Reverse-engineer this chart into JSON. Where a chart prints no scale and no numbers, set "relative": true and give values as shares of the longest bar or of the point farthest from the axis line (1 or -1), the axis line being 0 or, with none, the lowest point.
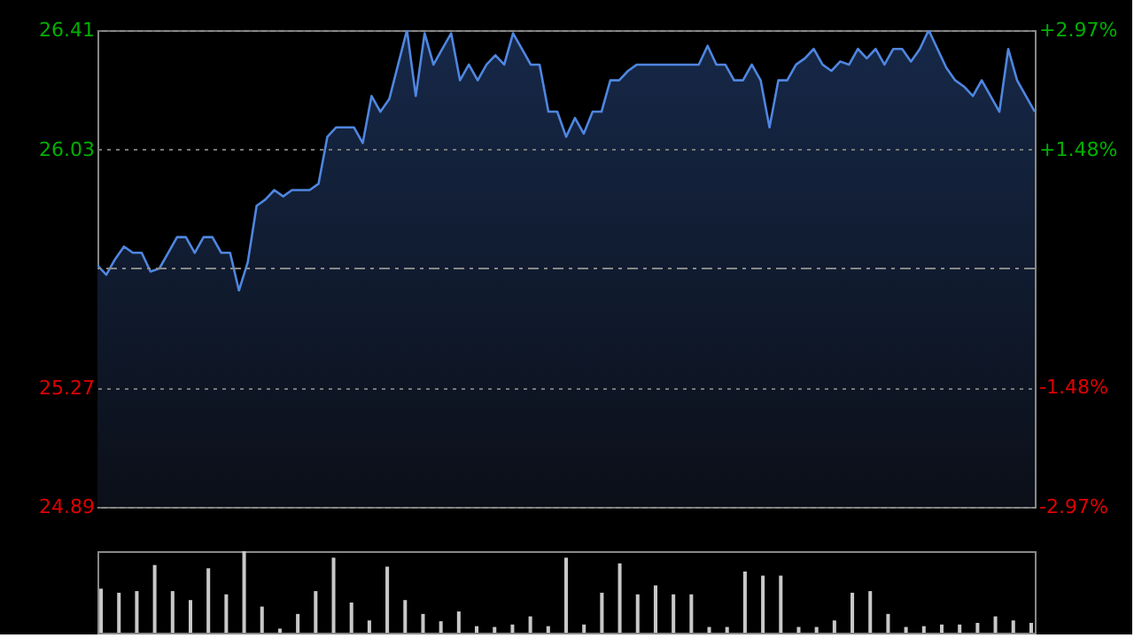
{
  "chart_data": [
    {
      "type": "area",
      "categories": [
        null,
        null,
        null,
        null,
        null,
        null,
        null,
        null,
        null,
        null,
        null,
        null,
        null,
        null,
        null,
        null,
        null,
        null,
        null,
        null,
        null,
        null,
        null,
        null,
        null,
        null,
        null,
        null,
        null,
        null,
        null,
        null,
        null,
        null,
        null,
        null,
        null,
        null,
        null,
        null,
        null,
        null,
        null,
        null,
        null,
        null,
        null,
        null,
        null,
        null,
        null,
        null,
        null,
        null,
        null,
        null,
        null,
        null,
        null,
        null,
        null,
        null,
        null,
        null,
        null,
        null,
        null,
        null,
        null,
        null,
        null,
        null,
        null,
        null,
        null,
        null,
        null,
        null,
        null,
        null,
        null,
        null,
        null,
        null,
        null,
        null,
        null,
        null,
        null,
        null,
        null,
        null,
        null,
        null,
        null,
        null,
        null,
        null,
        null,
        null,
        null,
        null,
        null,
        null,
        null,
        null,
        null
      ],
      "series": [
        {
          "color": "#4f86e0",
          "values": [
            25.66,
            25.63,
            25.68,
            25.72,
            25.7,
            25.7,
            25.64,
            25.65,
            25.7,
            25.75,
            25.75,
            25.7,
            25.75,
            25.75,
            25.7,
            25.7,
            25.58,
            25.67,
            25.85,
            25.87,
            25.9,
            25.88,
            25.9,
            25.9,
            25.9,
            25.92,
            26.07,
            26.1,
            26.1,
            26.1,
            26.05,
            26.2,
            26.15,
            26.19,
            26.3,
            26.41,
            26.2,
            26.4,
            26.3,
            26.35,
            26.4,
            26.25,
            26.3,
            26.25,
            26.3,
            26.33,
            26.3,
            26.4,
            26.35,
            26.3,
            26.3,
            26.15,
            26.15,
            26.07,
            26.13,
            26.08,
            26.15,
            26.15,
            26.25,
            26.25,
            26.28,
            26.3,
            26.3,
            26.3,
            26.3,
            26.3,
            26.3,
            26.3,
            26.3,
            26.36,
            26.3,
            26.3,
            26.25,
            26.25,
            26.3,
            26.25,
            26.1,
            26.25,
            26.25,
            26.3,
            26.32,
            26.35,
            26.3,
            26.28,
            26.31,
            26.3,
            26.35,
            26.32,
            26.35,
            26.3,
            26.35,
            26.35,
            26.31,
            26.35,
            26.41,
            26.35,
            26.29,
            26.25,
            26.23,
            26.2,
            26.25,
            26.2,
            26.15,
            26.35,
            26.25,
            26.2,
            26.15
          ]
        }
      ],
      "ylim": [
        24.89,
        26.41
      ],
      "yticks": [
        24.89,
        25.27,
        26.03,
        26.41
      ],
      "y2lim": [
        -2.97,
        2.97
      ],
      "y2ticks": [
        {
          "value": -2.97,
          "label": "-2.97%"
        },
        {
          "value": -1.48,
          "label": "-1.48%"
        },
        {
          "value": 1.48,
          "label": "+1.48%"
        },
        {
          "value": 2.97,
          "label": "+2.97%"
        }
      ],
      "ref_lines": [
        {
          "axis": "y",
          "value": 25.65,
          "color": "#888888",
          "line_style": "dashed"
        }
      ],
      "grid": "y",
      "marker": "none",
      "line_style": "solid"
    },
    {
      "type": "bar",
      "relative": true,
      "categories": [
        null,
        null,
        null,
        null,
        null,
        null,
        null,
        null,
        null,
        null,
        null,
        null,
        null,
        null,
        null,
        null,
        null,
        null,
        null,
        null,
        null,
        null,
        null,
        null,
        null,
        null,
        null,
        null,
        null,
        null,
        null,
        null,
        null,
        null,
        null,
        null,
        null,
        null,
        null,
        null,
        null,
        null,
        null,
        null,
        null,
        null,
        null,
        null,
        null,
        null,
        null,
        null,
        null
      ],
      "series": [
        {
          "color": "#c8c8c8",
          "values": [
            0.54,
            0.49,
            0.51,
            0.83,
            0.51,
            0.4,
            0.79,
            0.47,
            1.0,
            0.32,
            0.05,
            0.23,
            0.51,
            0.92,
            0.37,
            0.15,
            0.81,
            0.4,
            0.23,
            0.14,
            0.26,
            0.08,
            0.07,
            0.1,
            0.2,
            0.08,
            0.92,
            0.1,
            0.49,
            0.85,
            0.47,
            0.58,
            0.47,
            0.47,
            0.07,
            0.07,
            0.75,
            0.7,
            0.7,
            0.07,
            0.07,
            0.15,
            0.49,
            0.51,
            0.23,
            0.07,
            0.08,
            0.1,
            0.1,
            0.12,
            0.2,
            0.15,
            0.12
          ]
        }
      ]
    }
  ]
}
